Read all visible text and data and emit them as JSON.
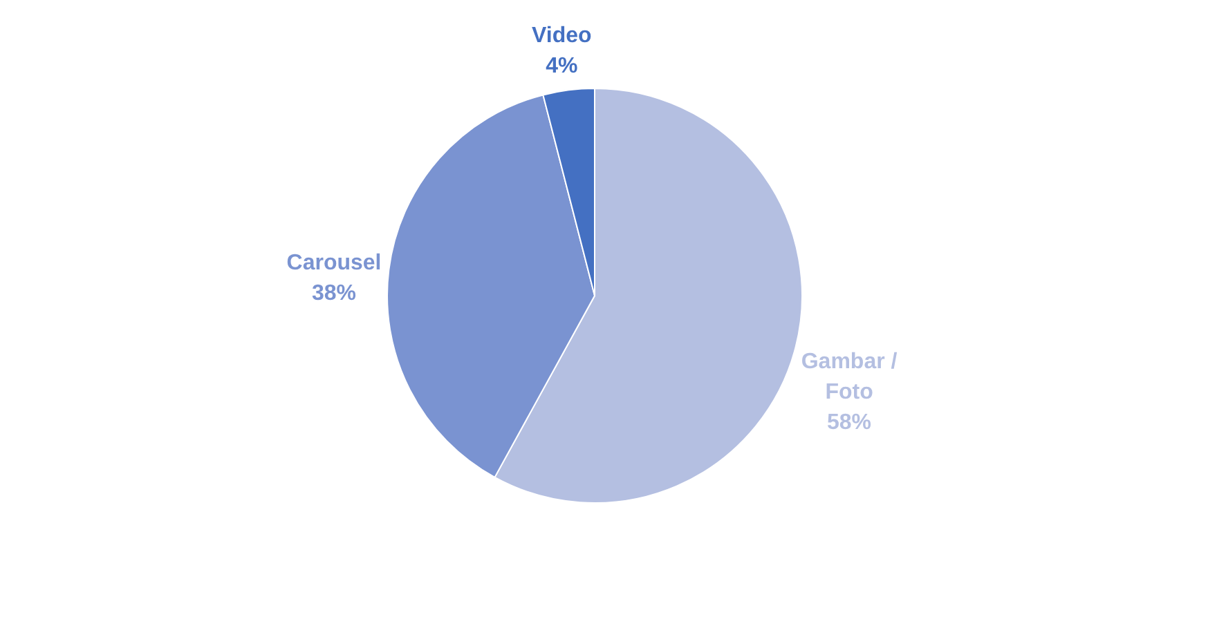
{
  "chart_data": {
    "type": "pie",
    "categories": [
      "Gambar / Foto",
      "Carousel",
      "Video"
    ],
    "values": [
      58,
      38,
      4
    ],
    "value_labels": [
      "58%",
      "38%",
      "4%"
    ],
    "colors": [
      "#b4bfe1",
      "#7a93d1",
      "#4470c2"
    ],
    "legend": false
  }
}
